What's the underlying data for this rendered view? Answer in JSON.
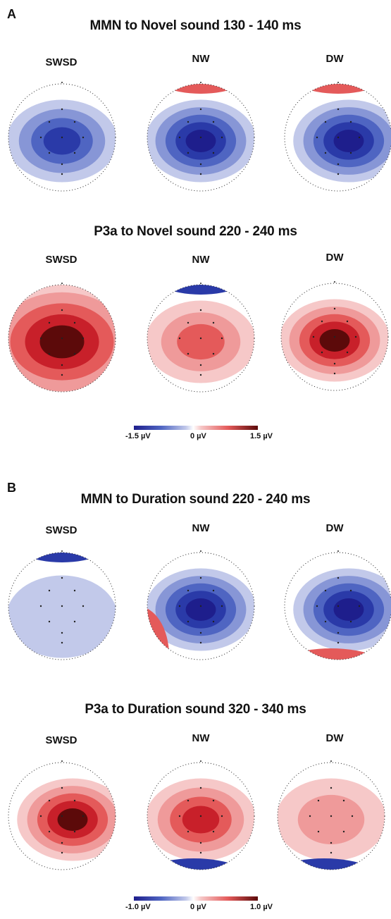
{
  "panels": [
    {
      "letter": "A",
      "rows": [
        {
          "title": "MMN to Novel sound 130 - 140 ms",
          "groups": [
            {
              "label": "SWSD",
              "map": {
                "blob": "neg",
                "level": 0.85,
                "shift": "center",
                "cap": "none"
              }
            },
            {
              "label": "NW",
              "map": {
                "blob": "neg",
                "level": 0.9,
                "shift": "center",
                "cap": "pos-top"
              }
            },
            {
              "label": "DW",
              "map": {
                "blob": "neg",
                "level": 1.0,
                "shift": "right",
                "cap": "pos-top"
              }
            }
          ]
        },
        {
          "title": "P3a to Novel sound  220 - 240 ms",
          "groups": [
            {
              "label": "SWSD",
              "map": {
                "blob": "pos",
                "level": 1.0,
                "shift": "full",
                "cap": "none"
              }
            },
            {
              "label": "NW",
              "map": {
                "blob": "pos",
                "level": 0.6,
                "shift": "center",
                "cap": "neg-top"
              }
            },
            {
              "label": "DW",
              "map": {
                "blob": "pos",
                "level": 1.0,
                "shift": "center",
                "cap": "none"
              }
            }
          ]
        }
      ],
      "scale": {
        "min_label": "-1.5 µV",
        "mid_label": "0 µV",
        "max_label": "1.5 µV"
      }
    },
    {
      "letter": "B",
      "rows": [
        {
          "title": "MMN to Duration sound  220 - 240 ms",
          "groups": [
            {
              "label": "SWSD",
              "map": {
                "blob": "neg",
                "level": 0.2,
                "shift": "flat",
                "cap": "neg-top"
              }
            },
            {
              "label": "NW",
              "map": {
                "blob": "neg",
                "level": 0.95,
                "shift": "center",
                "cap": "pos-left"
              }
            },
            {
              "label": "DW",
              "map": {
                "blob": "neg",
                "level": 1.0,
                "shift": "right",
                "cap": "pos-bottom"
              }
            }
          ]
        },
        {
          "title": "P3a to Duration sound  320 - 340 ms",
          "groups": [
            {
              "label": "SWSD",
              "map": {
                "blob": "pos",
                "level": 0.95,
                "shift": "right",
                "cap": "none"
              }
            },
            {
              "label": "NW",
              "map": {
                "blob": "pos",
                "level": 0.75,
                "shift": "center",
                "cap": "neg-bottom"
              }
            },
            {
              "label": "DW",
              "map": {
                "blob": "pos",
                "level": 0.45,
                "shift": "center",
                "cap": "neg-bottom"
              }
            }
          ]
        }
      ],
      "scale": {
        "min_label": "-1.0 µV",
        "mid_label": "0 µV",
        "max_label": "1.0 µV"
      }
    }
  ],
  "colors": {
    "neg_scale": [
      "#1e1e8c",
      "#2a3aa8",
      "#4f65c2",
      "#8796d6",
      "#c2c9ea"
    ],
    "pos_scale": [
      "#f6c8c8",
      "#ef9a9a",
      "#e45a5a",
      "#c8202a",
      "#5c0a0a"
    ],
    "background": "#ffffff"
  }
}
